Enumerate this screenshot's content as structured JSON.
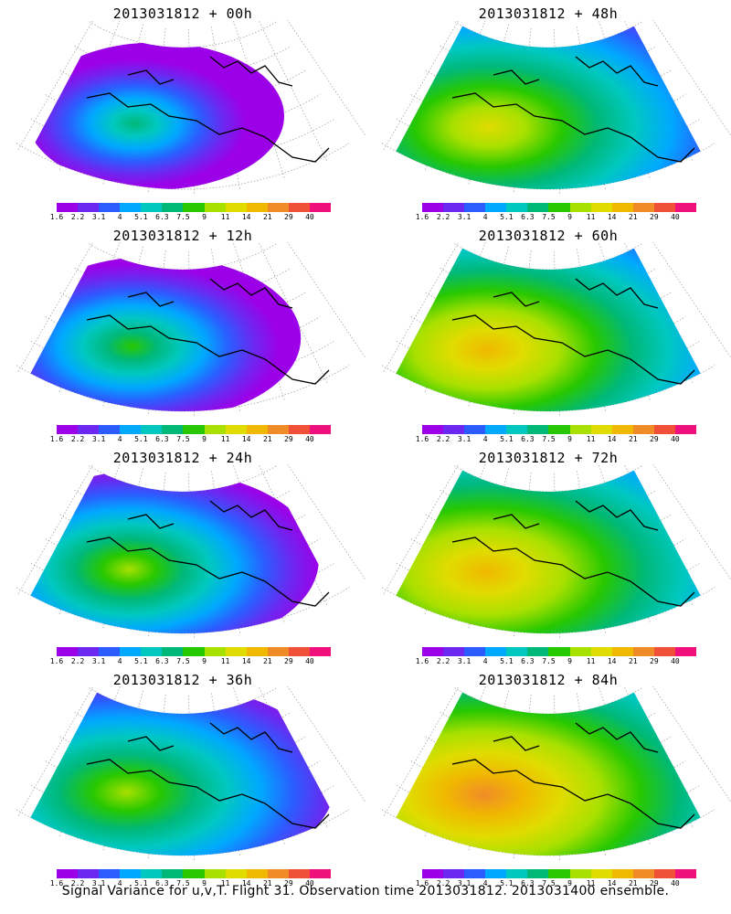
{
  "panels": [
    {
      "title": "2013031812 + 00h",
      "intensity": 0.15
    },
    {
      "title": "2013031812 + 48h",
      "intensity": 0.7
    },
    {
      "title": "2013031812 + 12h",
      "intensity": 0.28
    },
    {
      "title": "2013031812 + 60h",
      "intensity": 0.78
    },
    {
      "title": "2013031812 + 24h",
      "intensity": 0.42
    },
    {
      "title": "2013031812 + 72h",
      "intensity": 0.85
    },
    {
      "title": "2013031812 + 36h",
      "intensity": 0.55
    },
    {
      "title": "2013031812 + 84h",
      "intensity": 0.92
    }
  ],
  "colorbar": {
    "colors": [
      "#9c00e8",
      "#6c28f0",
      "#2c5cff",
      "#00a8ff",
      "#00c8c0",
      "#00b878",
      "#28c800",
      "#a8e000",
      "#e0dc00",
      "#f0b800",
      "#f08c28",
      "#f05038",
      "#f0107c"
    ],
    "labels": [
      "1.6",
      "2.2",
      "3.1",
      "4",
      "5.1",
      "6.3",
      "7.5",
      "9",
      "11",
      "14",
      "21",
      "29",
      "40"
    ]
  },
  "caption": "Signal Variance for u,v,T. Flight 31. Observation time 2013031812. 2013031400 ensemble."
}
